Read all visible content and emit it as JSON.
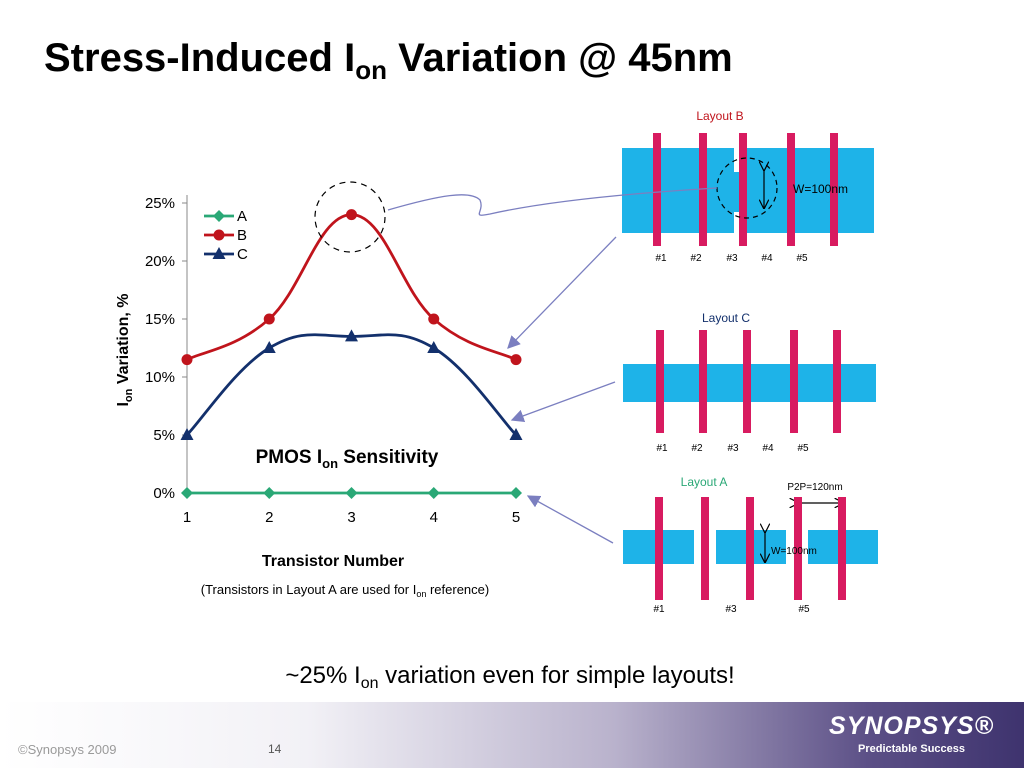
{
  "slide": {
    "title_pre": "Stress-Induced I",
    "title_sub": "on",
    "title_post": " Variation @ 45nm",
    "caption_pre": "~25% I",
    "caption_sub": "on",
    "caption_post": " variation even for simple layouts!",
    "footer_copyright": "©Synopsys 2009",
    "page_number": "14",
    "brand_name": "SYNOPSYS®",
    "brand_tagline": "Predictable Success"
  },
  "chart_data": {
    "type": "line",
    "title_pre": "PMOS I",
    "title_sub": "on",
    "title_post": " Sensitivity",
    "xlabel": "Transistor Number",
    "ylabel_pre": "I",
    "ylabel_sub": "on",
    "ylabel_post": " Variation, %",
    "note_pre": "(Transistors in Layout A are used for I",
    "note_sub": "on",
    "note_post": " reference)",
    "x": [
      1,
      2,
      3,
      4,
      5
    ],
    "x_ticks": [
      "1",
      "2",
      "3",
      "4",
      "5"
    ],
    "y_ticks": [
      "0%",
      "5%",
      "10%",
      "15%",
      "20%",
      "25%"
    ],
    "ylim": [
      0,
      25
    ],
    "grid": false,
    "legend_position": "top-left",
    "series": [
      {
        "name": "A",
        "values": [
          0,
          0,
          0,
          0,
          0
        ],
        "color": "#2aa876",
        "marker": "diamond"
      },
      {
        "name": "B",
        "values": [
          11.5,
          15,
          24,
          15,
          11.5
        ],
        "color": "#c0141c",
        "marker": "circle"
      },
      {
        "name": "C",
        "values": [
          5,
          12.5,
          13.5,
          12.5,
          5
        ],
        "color": "#13306c",
        "marker": "triangle"
      }
    ]
  },
  "layouts": {
    "b": {
      "label": "Layout B",
      "label_color": "#c0141c",
      "gates": [
        "#1",
        "#2",
        "#3",
        "#4",
        "#5"
      ],
      "width_label": "W=100nm"
    },
    "c": {
      "label": "Layout C",
      "label_color": "#13306c",
      "gates": [
        "#1",
        "#2",
        "#3",
        "#4",
        "#5"
      ]
    },
    "a": {
      "label": "Layout A",
      "label_color": "#2aa876",
      "gates": [
        "#1",
        "#3",
        "#5"
      ],
      "pitch_label": "P2P=120nm",
      "width_label": "W=100nm"
    },
    "active_color": "#1eb3e8",
    "gate_color": "#d81b60"
  }
}
